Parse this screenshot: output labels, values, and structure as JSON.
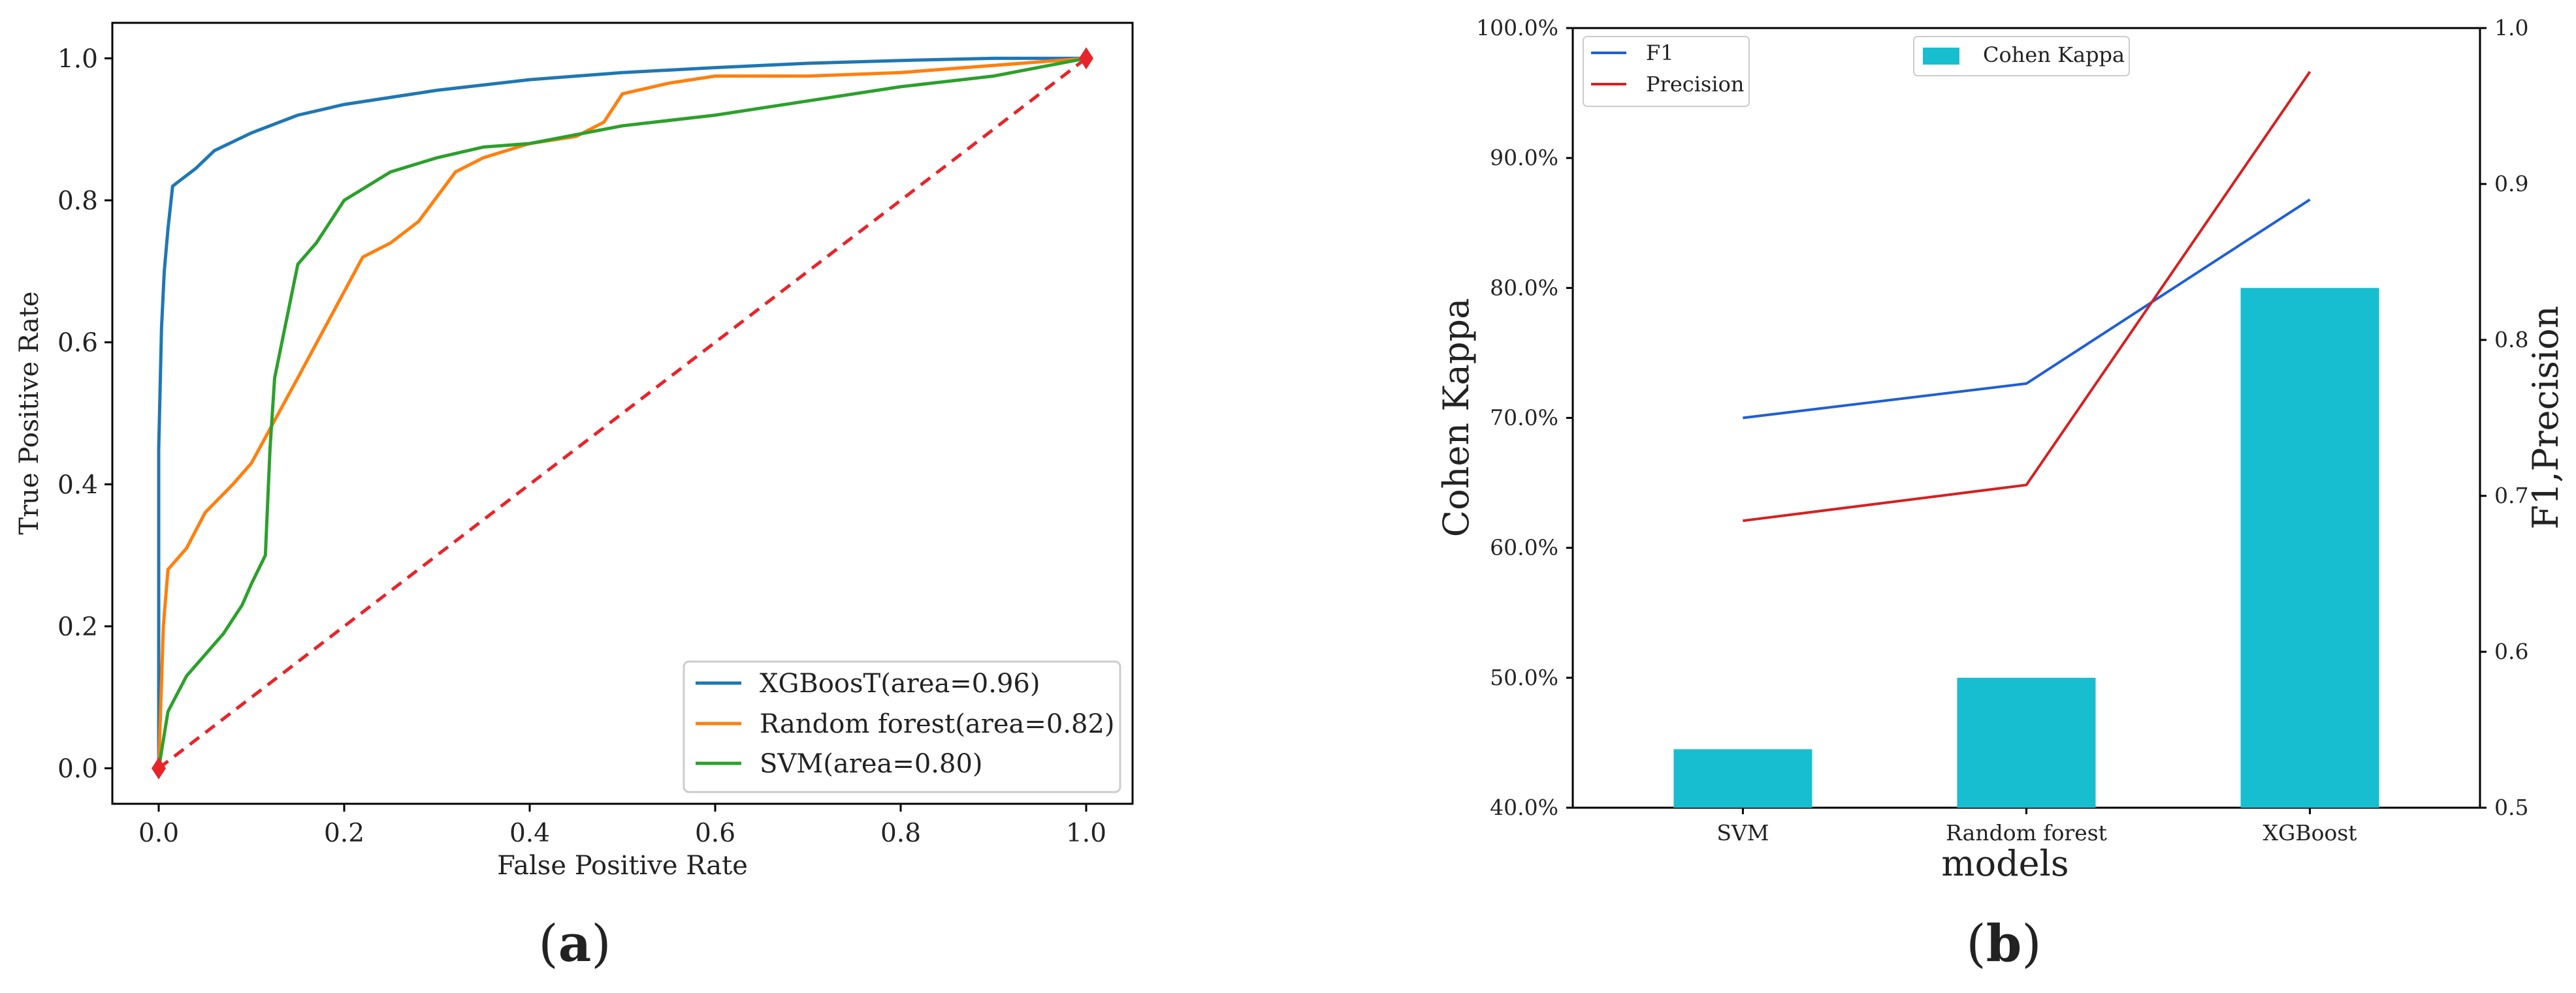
{
  "chart_data": [
    {
      "panel_label": "(a)",
      "type": "line",
      "title": "",
      "xlabel": "False Positive Rate",
      "ylabel": "True Positive Rate",
      "xlim": [
        -0.05,
        1.05
      ],
      "ylim": [
        -0.05,
        1.05
      ],
      "xticks": [
        "0.0",
        "0.2",
        "0.4",
        "0.6",
        "0.8",
        "1.0"
      ],
      "yticks": [
        "0.0",
        "0.2",
        "0.4",
        "0.6",
        "0.8",
        "1.0"
      ],
      "legend_position": "lower-right",
      "series": [
        {
          "name": "XGBoosT(area=0.96)",
          "color": "#1f77b4",
          "x": [
            0,
            0,
            0.003,
            0.006,
            0.01,
            0.015,
            0.02,
            0.04,
            0.06,
            0.1,
            0.15,
            0.2,
            0.3,
            0.4,
            0.5,
            0.6,
            0.7,
            0.8,
            0.9,
            1.0
          ],
          "y": [
            0,
            0.45,
            0.62,
            0.7,
            0.76,
            0.82,
            0.825,
            0.845,
            0.87,
            0.895,
            0.92,
            0.935,
            0.955,
            0.97,
            0.98,
            0.987,
            0.993,
            0.997,
            1.0,
            1.0
          ]
        },
        {
          "name": "Random forest(area=0.82)",
          "color": "#ff7f0e",
          "x": [
            0,
            0.005,
            0.01,
            0.03,
            0.05,
            0.08,
            0.1,
            0.15,
            0.22,
            0.25,
            0.28,
            0.32,
            0.35,
            0.4,
            0.45,
            0.48,
            0.5,
            0.55,
            0.6,
            0.7,
            0.8,
            0.9,
            1.0
          ],
          "y": [
            0,
            0.2,
            0.28,
            0.31,
            0.36,
            0.4,
            0.43,
            0.55,
            0.72,
            0.74,
            0.77,
            0.84,
            0.86,
            0.88,
            0.89,
            0.91,
            0.95,
            0.965,
            0.975,
            0.975,
            0.98,
            0.99,
            1.0
          ]
        },
        {
          "name": "SVM(area=0.80)",
          "color": "#2ca02c",
          "x": [
            0,
            0.01,
            0.03,
            0.05,
            0.07,
            0.09,
            0.1,
            0.115,
            0.12,
            0.125,
            0.15,
            0.17,
            0.2,
            0.25,
            0.3,
            0.35,
            0.4,
            0.5,
            0.6,
            0.7,
            0.8,
            0.9,
            1.0
          ],
          "y": [
            0,
            0.08,
            0.13,
            0.16,
            0.19,
            0.23,
            0.26,
            0.3,
            0.45,
            0.55,
            0.71,
            0.74,
            0.8,
            0.84,
            0.86,
            0.875,
            0.88,
            0.905,
            0.92,
            0.94,
            0.96,
            0.975,
            1.0
          ]
        }
      ],
      "reference_line": {
        "x": [
          0,
          1
        ],
        "y": [
          0,
          1
        ],
        "color": "#e8242a",
        "style": "dashed"
      }
    },
    {
      "panel_label": "(b)",
      "type": "bar",
      "title": "",
      "xlabel": "models",
      "ylabel_left": "Cohen Kappa",
      "ylabel_right": "F1,Precision",
      "categories": [
        "SVM",
        "Random forest",
        "XGBoost"
      ],
      "left_axis": {
        "ylim": [
          40,
          100
        ],
        "ticks": [
          "40.0%",
          "50.0%",
          "60.0%",
          "70.0%",
          "80.0%",
          "90.0%",
          "100.0%"
        ]
      },
      "right_axis": {
        "ylim": [
          0.5,
          1.0
        ],
        "ticks": [
          "0.5",
          "0.6",
          "0.7",
          "0.8",
          "0.9",
          "1.0"
        ]
      },
      "bar_series": {
        "name": "Cohen Kappa",
        "color": "#17becf",
        "values": [
          44.5,
          50.0,
          80.0
        ]
      },
      "line_series": [
        {
          "name": "F1",
          "color": "#1f5fd6",
          "values": [
            0.75,
            0.772,
            0.89
          ]
        },
        {
          "name": "Precision",
          "color": "#d62020",
          "values": [
            0.684,
            0.707,
            0.972
          ]
        }
      ]
    }
  ]
}
